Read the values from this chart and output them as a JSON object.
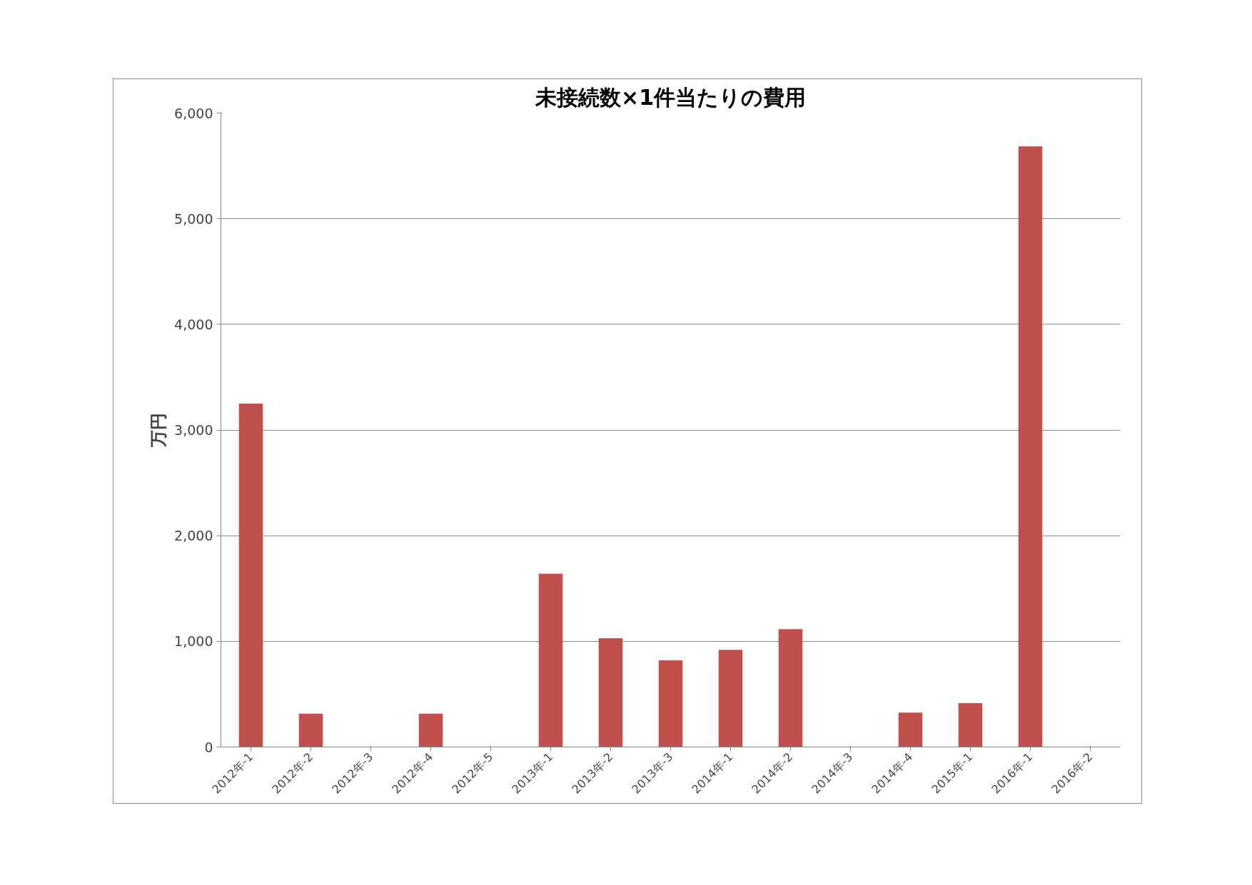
{
  "chart_data": {
    "type": "bar",
    "title": "未接続数×1件当たりの費用",
    "ylabel": "万円",
    "categories": [
      "2012年-1",
      "2012年-2",
      "2012年-3",
      "2012年-4",
      "2012年-5",
      "2013年-1",
      "2013年-2",
      "2013年-3",
      "2014年-1",
      "2014年-2",
      "2014年-3",
      "2014年-4",
      "2015年-1",
      "2016年-1",
      "2016年-2"
    ],
    "values": [
      3250,
      315,
      0,
      315,
      0,
      1640,
      1030,
      820,
      920,
      1115,
      0,
      325,
      415,
      5685,
      0
    ],
    "color": "#c0504d",
    "ylim": [
      0,
      6000
    ],
    "yticks": [
      {
        "value": 0,
        "label": "0"
      },
      {
        "value": 1000,
        "label": "1,000"
      },
      {
        "value": 2000,
        "label": "2,000"
      },
      {
        "value": 3000,
        "label": "3,000"
      },
      {
        "value": 4000,
        "label": "4,000"
      },
      {
        "value": 5000,
        "label": "5,000"
      },
      {
        "value": 6000,
        "label": "6,000"
      }
    ],
    "grid": "y"
  }
}
